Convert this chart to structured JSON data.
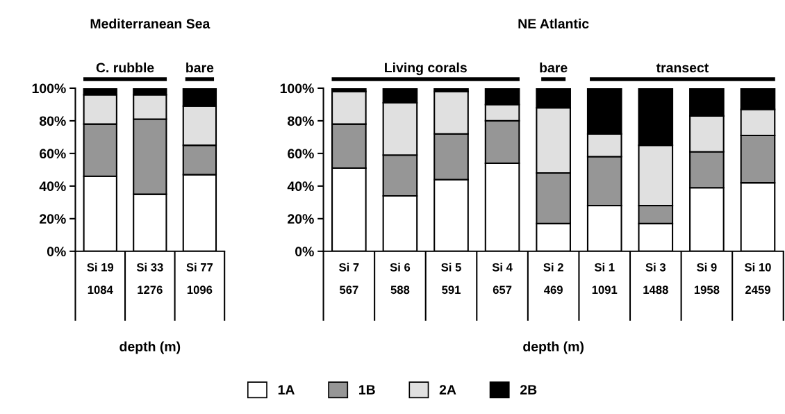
{
  "chart_data": [
    {
      "type": "bar",
      "stacked": true,
      "title": "Mediterranean Sea",
      "xlabel": "depth (m)",
      "legend": "bottom",
      "categories": [
        "Si 19\n1084",
        "Si 33\n1276",
        "Si 77\n1096"
      ],
      "series": [
        {
          "name": "1A",
          "color": "#ffffff",
          "values": [
            46,
            35,
            47
          ]
        },
        {
          "name": "1B",
          "color": "#969696",
          "values": [
            32,
            46,
            18
          ]
        },
        {
          "name": "2A",
          "color": "#e0e0e0",
          "values": [
            18,
            15,
            24
          ]
        },
        {
          "name": "2B",
          "color": "#000000",
          "values": [
            4,
            4,
            11
          ]
        }
      ],
      "ylim": [
        0,
        100
      ],
      "yticks": [
        {
          "value": 0,
          "label": "0%"
        },
        {
          "value": 20,
          "label": "20%"
        },
        {
          "value": 40,
          "label": "40%"
        },
        {
          "value": 60,
          "label": "60%"
        },
        {
          "value": 80,
          "label": "80%"
        },
        {
          "value": 100,
          "label": "100%"
        }
      ],
      "annotations": [
        "C. rubble",
        "bare"
      ]
    },
    {
      "type": "bar",
      "stacked": true,
      "title": "NE Atlantic",
      "xlabel": "depth (m)",
      "legend": "bottom",
      "categories": [
        "Si 7\n567",
        "Si 6\n588",
        "Si 5\n591",
        "Si 4\n657",
        "Si 2\n469",
        "Si 1\n1091",
        "Si 3\n1488",
        "Si 9\n1958",
        "Si 10\n2459"
      ],
      "series": [
        {
          "name": "1A",
          "color": "#ffffff",
          "values": [
            51,
            34,
            44,
            54,
            17,
            28,
            17,
            39,
            42
          ]
        },
        {
          "name": "1B",
          "color": "#969696",
          "values": [
            27,
            25,
            28,
            26,
            31,
            30,
            11,
            22,
            29
          ]
        },
        {
          "name": "2A",
          "color": "#e0e0e0",
          "values": [
            20,
            32,
            26,
            10,
            40,
            14,
            37,
            22,
            16
          ]
        },
        {
          "name": "2B",
          "color": "#000000",
          "values": [
            2,
            9,
            2,
            10,
            12,
            28,
            35,
            17,
            13
          ]
        }
      ],
      "ylim": [
        0,
        100
      ],
      "yticks": [
        {
          "value": 0,
          "label": "0%"
        },
        {
          "value": 20,
          "label": "20%"
        },
        {
          "value": 40,
          "label": "40%"
        },
        {
          "value": 60,
          "label": "60%"
        },
        {
          "value": 80,
          "label": "80%"
        },
        {
          "value": 100,
          "label": "100%"
        }
      ],
      "annotations": [
        "Living corals",
        "bare",
        "transect"
      ]
    }
  ]
}
